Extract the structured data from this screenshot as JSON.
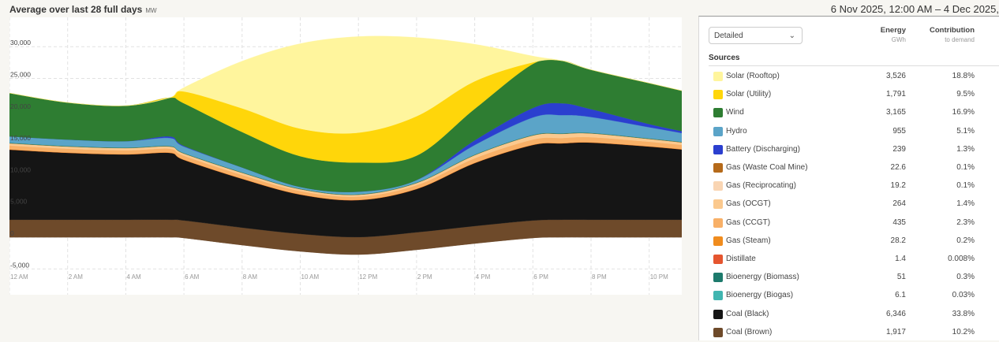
{
  "header": {
    "title": "Average over last 28 full days",
    "unit": "MW",
    "date_range": "6 Nov 2025, 12:00 AM – 4 Dec 2025,"
  },
  "panel": {
    "view_select": "Detailed",
    "energy_header": "Energy",
    "energy_unit": "GWh",
    "contribution_header": "Contribution",
    "contribution_sub": "to demand",
    "sources_label": "Sources",
    "sources": [
      {
        "name": "Solar (Rooftop)",
        "energy": "3,526",
        "contribution": "18.8%",
        "color": "#fff59d"
      },
      {
        "name": "Solar (Utility)",
        "energy": "1,791",
        "contribution": "9.5%",
        "color": "#ffd60a"
      },
      {
        "name": "Wind",
        "energy": "3,165",
        "contribution": "16.9%",
        "color": "#2e7d32"
      },
      {
        "name": "Hydro",
        "energy": "955",
        "contribution": "5.1%",
        "color": "#5ba4c8"
      },
      {
        "name": "Battery (Discharging)",
        "energy": "239",
        "contribution": "1.3%",
        "color": "#2b3fcf"
      },
      {
        "name": "Gas (Waste Coal Mine)",
        "energy": "22.6",
        "contribution": "0.1%",
        "color": "#b56a1a"
      },
      {
        "name": "Gas (Reciprocating)",
        "energy": "19.2",
        "contribution": "0.1%",
        "color": "#f9d5b3"
      },
      {
        "name": "Gas (OCGT)",
        "energy": "264",
        "contribution": "1.4%",
        "color": "#fbc98e"
      },
      {
        "name": "Gas (CCGT)",
        "energy": "435",
        "contribution": "2.3%",
        "color": "#f8b067"
      },
      {
        "name": "Gas (Steam)",
        "energy": "28.2",
        "contribution": "0.2%",
        "color": "#f08c1e"
      },
      {
        "name": "Distillate",
        "energy": "1.4",
        "contribution": "0.008%",
        "color": "#e5552f"
      },
      {
        "name": "Bioenergy (Biomass)",
        "energy": "51",
        "contribution": "0.3%",
        "color": "#1d7a6c"
      },
      {
        "name": "Bioenergy (Biogas)",
        "energy": "6.1",
        "contribution": "0.03%",
        "color": "#40b5b0"
      },
      {
        "name": "Coal (Black)",
        "energy": "6,346",
        "contribution": "33.8%",
        "color": "#151515"
      },
      {
        "name": "Coal (Brown)",
        "energy": "1,917",
        "contribution": "10.2%",
        "color": "#6e4a2a"
      }
    ]
  },
  "chart_data": {
    "type": "area",
    "stacked": true,
    "ylabel_unit": "MW",
    "ylim": [
      -5000,
      32000
    ],
    "yticks": [
      "30,000",
      "25,000",
      "20,000",
      "15,000",
      "10,000",
      "5,000",
      "0",
      "-5,000"
    ],
    "ytick_values": [
      30000,
      25000,
      20000,
      15000,
      10000,
      5000,
      0,
      -5000
    ],
    "xticks": [
      "12 AM",
      "2 AM",
      "4 AM",
      "6 AM",
      "8 AM",
      "10 AM",
      "12 PM",
      "2 PM",
      "4 PM",
      "6 PM",
      "8 PM",
      "10 PM"
    ],
    "x_hours": [
      0,
      2,
      4,
      5.5,
      6,
      8,
      10,
      12,
      14,
      16,
      18,
      19,
      20,
      22,
      23.5
    ],
    "grid": true,
    "negative": {
      "color": "#5a3d25",
      "values": [
        0,
        0,
        0,
        0,
        -120,
        -1240,
        -2230,
        -2730,
        -1980,
        -990,
        -120,
        0,
        0,
        0,
        0
      ]
    },
    "series": [
      {
        "name": "Coal (Brown)",
        "color": "#6e4a2a",
        "values": [
          2750,
          2750,
          2750,
          2750,
          2750,
          2750,
          2750,
          2750,
          2750,
          2750,
          2750,
          2750,
          2750,
          2750,
          2750
        ]
      },
      {
        "name": "Coal (Black)",
        "color": "#151515",
        "values": [
          11040,
          10540,
          10290,
          10540,
          9550,
          7690,
          6200,
          5830,
          6820,
          9920,
          11900,
          12030,
          12150,
          11530,
          10910
        ]
      },
      {
        "name": "Distillate",
        "color": "#e5552f",
        "values": [
          2,
          2,
          2,
          2,
          2,
          2,
          2,
          2,
          2,
          2,
          2,
          2,
          2,
          2,
          2
        ]
      },
      {
        "name": "Gas (Steam)",
        "color": "#f08c1e",
        "values": [
          42,
          42,
          42,
          42,
          42,
          42,
          42,
          42,
          42,
          42,
          42,
          42,
          42,
          42,
          42
        ]
      },
      {
        "name": "Gas (CCGT)",
        "color": "#f8b067",
        "values": [
          600,
          600,
          600,
          600,
          600,
          550,
          500,
          500,
          550,
          700,
          800,
          800,
          800,
          700,
          650
        ]
      },
      {
        "name": "Gas (OCGT)",
        "color": "#fbc98e",
        "values": [
          300,
          300,
          300,
          300,
          300,
          300,
          250,
          250,
          300,
          450,
          600,
          600,
          550,
          400,
          350
        ]
      },
      {
        "name": "Gas (Reciprocating)",
        "color": "#f9d5b3",
        "values": [
          29,
          29,
          29,
          29,
          29,
          29,
          29,
          29,
          29,
          29,
          29,
          29,
          29,
          29,
          29
        ]
      },
      {
        "name": "Gas (Waste Coal Mine)",
        "color": "#b56a1a",
        "values": [
          33,
          33,
          33,
          33,
          33,
          33,
          33,
          33,
          33,
          33,
          33,
          33,
          33,
          33,
          33
        ]
      },
      {
        "name": "Bioenergy (Biomass)",
        "color": "#1d7a6c",
        "values": [
          76,
          76,
          76,
          76,
          76,
          76,
          76,
          76,
          76,
          76,
          76,
          76,
          76,
          76,
          76
        ]
      },
      {
        "name": "Bioenergy (Biogas)",
        "color": "#40b5b0",
        "values": [
          9,
          9,
          9,
          9,
          9,
          9,
          9,
          9,
          9,
          9,
          9,
          9,
          9,
          9,
          9
        ]
      },
      {
        "name": "Hydro",
        "color": "#5ba4c8",
        "values": [
          990,
          990,
          990,
          1240,
          990,
          740,
          250,
          370,
          370,
          1490,
          2730,
          2850,
          2480,
          1740,
          1240
        ]
      },
      {
        "name": "Battery (Discharging)",
        "color": "#2b3fcf",
        "values": [
          0,
          0,
          0,
          250,
          120,
          0,
          0,
          0,
          0,
          740,
          1490,
          1860,
          1240,
          500,
          250
        ]
      },
      {
        "name": "Wind",
        "color": "#2e7d32",
        "values": [
          6820,
          5830,
          5580,
          6080,
          6700,
          5580,
          4840,
          4590,
          3840,
          4960,
          6940,
          6700,
          6200,
          6450,
          6320
        ]
      },
      {
        "name": "Solar (Utility)",
        "color": "#ffd60a",
        "values": [
          0,
          0,
          0,
          0,
          1860,
          3720,
          4340,
          4710,
          6200,
          4340,
          250,
          0,
          0,
          0,
          0
        ]
      },
      {
        "name": "Solar (Rooftop)",
        "color": "#fff59d",
        "values": [
          0,
          0,
          0,
          0,
          620,
          7440,
          13390,
          15130,
          12400,
          5830,
          990,
          0,
          0,
          0,
          0
        ]
      }
    ]
  }
}
